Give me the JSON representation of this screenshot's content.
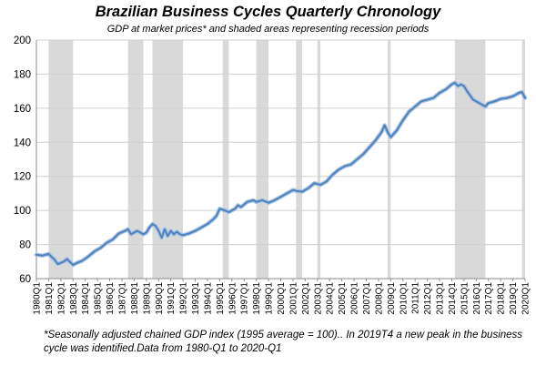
{
  "chart_data": {
    "type": "line",
    "title": "Brazilian Business Cycles Quarterly Chronology",
    "subtitle": "GDP at market prices* and shaded areas representing recession periods",
    "footnote": "*Seasonally adjusted chained GDP index (1995 average = 100).. In 2019T4 a new peak in the business cycle was identified.Data from 1980-Q1 to 2020-Q1",
    "ylim": [
      60,
      200
    ],
    "yticks": [
      60,
      80,
      100,
      120,
      140,
      160,
      180,
      200
    ],
    "x_tick_labels": [
      "1980Q1",
      "1981Q1",
      "1982Q1",
      "1983Q1",
      "1984Q1",
      "1985Q1",
      "1986Q1",
      "1987Q1",
      "1988Q1",
      "1989Q1",
      "1990Q1",
      "1991Q1",
      "1992Q1",
      "1993Q1",
      "1994Q1",
      "1995Q1",
      "1996Q1",
      "1997Q1",
      "1998Q1",
      "1999Q1",
      "2000Q1",
      "2001Q1",
      "2002Q1",
      "2003Q1",
      "2004Q1",
      "2005Q1",
      "2006Q1",
      "2007Q1",
      "2008Q1",
      "2009Q1",
      "2010Q1",
      "2011Q1",
      "2012Q1",
      "2013Q1",
      "2014Q1",
      "2015Q1",
      "2016Q1",
      "2017Q1",
      "2018Q1",
      "2019Q1",
      "2020Q1"
    ],
    "grid": "horizontal",
    "line_color": "#4f81bd",
    "recession_color": "#d9d9d9",
    "recessions": [
      {
        "start": "1981Q1",
        "end": "1983Q1"
      },
      {
        "start": "1987Q3",
        "end": "1988Q4"
      },
      {
        "start": "1989Q3",
        "end": "1992Q1"
      },
      {
        "start": "1995Q2",
        "end": "1995Q4"
      },
      {
        "start": "1998Q1",
        "end": "1999Q1"
      },
      {
        "start": "2001Q2",
        "end": "2001Q4"
      },
      {
        "start": "2003Q1",
        "end": "2003Q2"
      },
      {
        "start": "2008Q4",
        "end": "2009Q1"
      },
      {
        "start": "2014Q2",
        "end": "2016Q4"
      },
      {
        "start": "2019Q4",
        "end": "2020Q1"
      }
    ],
    "series": [
      {
        "values": [
          {
            "x": "1980Q1",
            "y": 74
          },
          {
            "x": "1980Q3",
            "y": 73.5
          },
          {
            "x": "1981Q1",
            "y": 74.5
          },
          {
            "x": "1981Q3",
            "y": 71
          },
          {
            "x": "1981Q4",
            "y": 68.5
          },
          {
            "x": "1982Q2",
            "y": 70
          },
          {
            "x": "1982Q3",
            "y": 71.5
          },
          {
            "x": "1983Q1",
            "y": 68
          },
          {
            "x": "1983Q2",
            "y": 69
          },
          {
            "x": "1983Q4",
            "y": 70.5
          },
          {
            "x": "1984Q2",
            "y": 73
          },
          {
            "x": "1984Q4",
            "y": 76
          },
          {
            "x": "1985Q2",
            "y": 78
          },
          {
            "x": "1985Q4",
            "y": 81
          },
          {
            "x": "1986Q2",
            "y": 83
          },
          {
            "x": "1986Q4",
            "y": 86.5
          },
          {
            "x": "1987Q2",
            "y": 88
          },
          {
            "x": "1987Q3",
            "y": 89
          },
          {
            "x": "1987Q4",
            "y": 86
          },
          {
            "x": "1988Q2",
            "y": 88
          },
          {
            "x": "1988Q4",
            "y": 86
          },
          {
            "x": "1989Q1",
            "y": 87
          },
          {
            "x": "1989Q2",
            "y": 90
          },
          {
            "x": "1989Q3",
            "y": 92
          },
          {
            "x": "1989Q4",
            "y": 91
          },
          {
            "x": "1990Q1",
            "y": 88
          },
          {
            "x": "1990Q2",
            "y": 84
          },
          {
            "x": "1990Q3",
            "y": 89
          },
          {
            "x": "1990Q4",
            "y": 85
          },
          {
            "x": "1991Q1",
            "y": 88
          },
          {
            "x": "1991Q2",
            "y": 86
          },
          {
            "x": "1991Q3",
            "y": 87.5
          },
          {
            "x": "1991Q4",
            "y": 86
          },
          {
            "x": "1992Q1",
            "y": 85.5
          },
          {
            "x": "1992Q3",
            "y": 86.5
          },
          {
            "x": "1993Q1",
            "y": 88
          },
          {
            "x": "1993Q3",
            "y": 90
          },
          {
            "x": "1994Q1",
            "y": 92
          },
          {
            "x": "1994Q3",
            "y": 95
          },
          {
            "x": "1994Q4",
            "y": 97
          },
          {
            "x": "1995Q1",
            "y": 101
          },
          {
            "x": "1995Q2",
            "y": 100.5
          },
          {
            "x": "1995Q4",
            "y": 99
          },
          {
            "x": "1996Q2",
            "y": 101
          },
          {
            "x": "1996Q3",
            "y": 103
          },
          {
            "x": "1996Q4",
            "y": 102
          },
          {
            "x": "1997Q2",
            "y": 105
          },
          {
            "x": "1997Q4",
            "y": 106
          },
          {
            "x": "1998Q1",
            "y": 105
          },
          {
            "x": "1998Q3",
            "y": 106
          },
          {
            "x": "1999Q1",
            "y": 104.5
          },
          {
            "x": "1999Q3",
            "y": 106
          },
          {
            "x": "2000Q1",
            "y": 108
          },
          {
            "x": "2000Q3",
            "y": 110
          },
          {
            "x": "2001Q1",
            "y": 112
          },
          {
            "x": "2001Q2",
            "y": 111.5
          },
          {
            "x": "2001Q4",
            "y": 111
          },
          {
            "x": "2002Q2",
            "y": 113
          },
          {
            "x": "2002Q4",
            "y": 116
          },
          {
            "x": "2003Q1",
            "y": 115.5
          },
          {
            "x": "2003Q2",
            "y": 115
          },
          {
            "x": "2003Q4",
            "y": 117
          },
          {
            "x": "2004Q2",
            "y": 121
          },
          {
            "x": "2004Q4",
            "y": 124
          },
          {
            "x": "2005Q2",
            "y": 126
          },
          {
            "x": "2005Q4",
            "y": 127
          },
          {
            "x": "2006Q2",
            "y": 130
          },
          {
            "x": "2006Q4",
            "y": 133
          },
          {
            "x": "2007Q2",
            "y": 137
          },
          {
            "x": "2007Q4",
            "y": 141
          },
          {
            "x": "2008Q2",
            "y": 146
          },
          {
            "x": "2008Q3",
            "y": 150
          },
          {
            "x": "2008Q4",
            "y": 146
          },
          {
            "x": "2009Q1",
            "y": 143
          },
          {
            "x": "2009Q3",
            "y": 147
          },
          {
            "x": "2010Q1",
            "y": 153
          },
          {
            "x": "2010Q3",
            "y": 158
          },
          {
            "x": "2011Q1",
            "y": 161
          },
          {
            "x": "2011Q3",
            "y": 164
          },
          {
            "x": "2012Q1",
            "y": 165
          },
          {
            "x": "2012Q3",
            "y": 166
          },
          {
            "x": "2013Q1",
            "y": 169
          },
          {
            "x": "2013Q3",
            "y": 171
          },
          {
            "x": "2014Q1",
            "y": 174
          },
          {
            "x": "2014Q2",
            "y": 175
          },
          {
            "x": "2014Q3",
            "y": 173
          },
          {
            "x": "2014Q4",
            "y": 174
          },
          {
            "x": "2015Q1",
            "y": 173
          },
          {
            "x": "2015Q2",
            "y": 170
          },
          {
            "x": "2015Q4",
            "y": 165
          },
          {
            "x": "2016Q2",
            "y": 163
          },
          {
            "x": "2016Q4",
            "y": 161
          },
          {
            "x": "2017Q1",
            "y": 163
          },
          {
            "x": "2017Q3",
            "y": 164
          },
          {
            "x": "2018Q1",
            "y": 165.5
          },
          {
            "x": "2018Q3",
            "y": 166
          },
          {
            "x": "2019Q1",
            "y": 167
          },
          {
            "x": "2019Q3",
            "y": 169
          },
          {
            "x": "2019Q4",
            "y": 169.5
          },
          {
            "x": "2020Q1",
            "y": 166
          }
        ]
      }
    ]
  }
}
